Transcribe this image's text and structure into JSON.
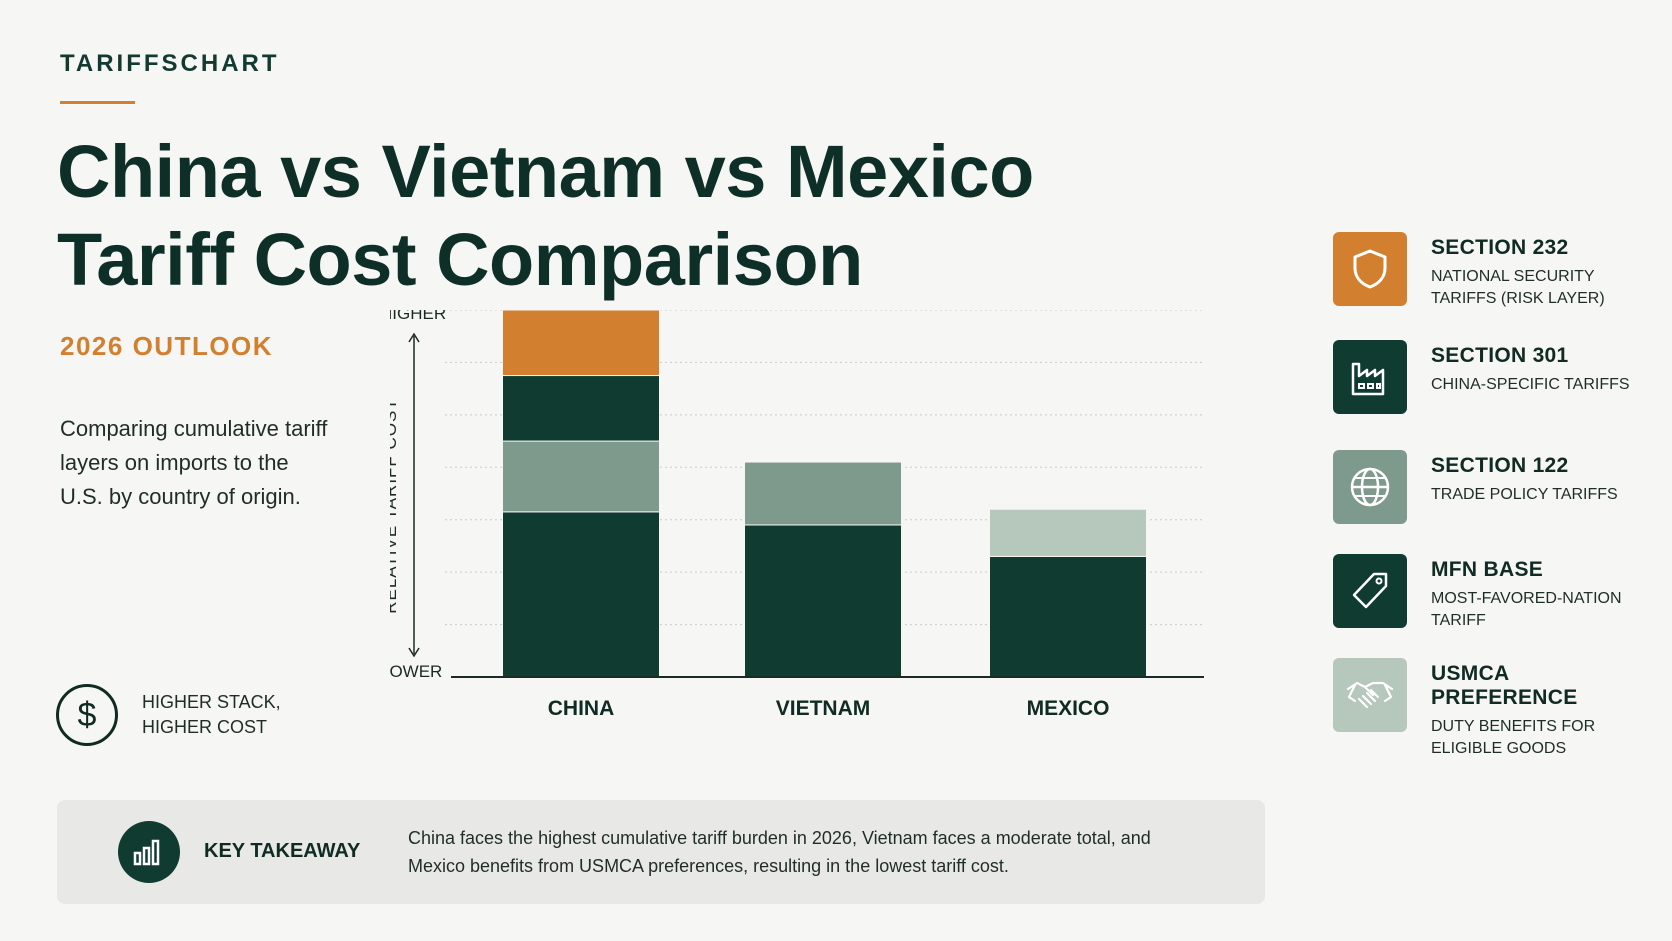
{
  "brand": "TARIFFSCHART",
  "title_line1": "China vs Vietnam vs Mexico",
  "title_line2": "Tariff Cost Comparison",
  "subtitle": "2026 OUTLOOK",
  "description": "Comparing cumulative tariff layers on imports to the U.S. by country of origin.",
  "note": "HIGHER STACK, HIGHER COST",
  "colors": {
    "accent": "#d2802f",
    "section232": "#d2802f",
    "section301": "#0f3b31",
    "section122": "#7e9a8d",
    "mfn": "#0f3b31",
    "usmca": "#b6c7bc"
  },
  "legend": [
    {
      "key": "section232",
      "title": "SECTION 232",
      "desc": "NATIONAL SECURITY TARIFFS (RISK LAYER)",
      "icon": "shield-icon"
    },
    {
      "key": "section301",
      "title": "SECTION 301",
      "desc": "CHINA-SPECIFIC TARIFFS",
      "icon": "factory-icon"
    },
    {
      "key": "section122",
      "title": "SECTION 122",
      "desc": "TRADE POLICY TARIFFS",
      "icon": "globe-icon"
    },
    {
      "key": "mfn",
      "title": "MFN BASE",
      "desc": "MOST-FAVORED-NATION TARIFF",
      "icon": "tag-icon"
    },
    {
      "key": "usmca",
      "title": "USMCA PREFERENCE",
      "desc": "DUTY BENEFITS FOR ELIGIBLE GOODS",
      "icon": "handshake-icon"
    }
  ],
  "chart_data": {
    "type": "bar",
    "stacked": true,
    "categories": [
      "CHINA",
      "VIETNAM",
      "MEXICO"
    ],
    "ylabel": "RELATIVE TARIFF COST",
    "ytick_high": "HIGHER",
    "ytick_low": "LOWER",
    "ylim": [
      0,
      7
    ],
    "grid": true,
    "series": [
      {
        "name": "MFN BASE",
        "key": "mfn",
        "values": [
          3.15,
          2.9,
          2.3
        ]
      },
      {
        "name": "SECTION 122",
        "key": "section122",
        "values": [
          1.35,
          1.2,
          0
        ]
      },
      {
        "name": "SECTION 301",
        "key": "section301",
        "values": [
          1.25,
          0,
          0
        ]
      },
      {
        "name": "SECTION 232",
        "key": "section232",
        "values": [
          1.25,
          0,
          0
        ]
      },
      {
        "name": "USMCA PREFERENCE",
        "key": "usmca",
        "values": [
          0,
          0,
          0.9
        ]
      }
    ]
  },
  "takeaway": {
    "label": "KEY TAKEAWAY",
    "text": "China faces the highest cumulative tariff burden in 2026, Vietnam faces a moderate total, and Mexico benefits from USMCA preferences, resulting in the lowest tariff cost."
  }
}
